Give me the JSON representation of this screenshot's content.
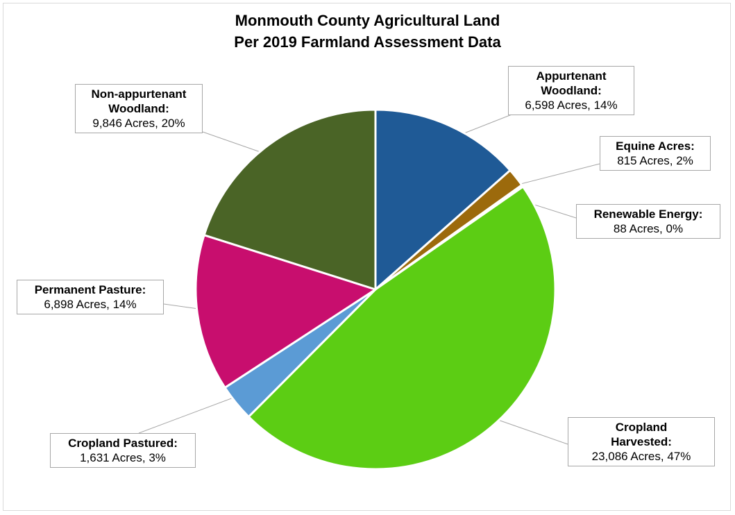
{
  "chart_data": {
    "type": "pie",
    "title": "Monmouth County Agricultural Land",
    "subtitle": "Per 2019 Farmland Assessment Data",
    "slices": [
      {
        "label": "Appurtenant Woodland",
        "label_lines": [
          "Appurtenant",
          "Woodland:"
        ],
        "value": 6598,
        "value_text": "6,598 Acres, 14%",
        "percent": 14,
        "color": "#1f5a96"
      },
      {
        "label": "Equine Acres",
        "label_lines": [
          "Equine Acres:"
        ],
        "value": 815,
        "value_text": "815 Acres, 2%",
        "percent": 2,
        "color": "#9c6a0c"
      },
      {
        "label": "Renewable Energy",
        "label_lines": [
          "Renewable Energy:"
        ],
        "value": 88,
        "value_text": "88 Acres, 0%",
        "percent": 0,
        "color": "#808080"
      },
      {
        "label": "Cropland Harvested",
        "label_lines": [
          "Cropland",
          "Harvested:"
        ],
        "value": 23086,
        "value_text": "23,086 Acres, 47%",
        "percent": 47,
        "color": "#5ccd14"
      },
      {
        "label": "Cropland Pastured",
        "label_lines": [
          "Cropland Pastured:"
        ],
        "value": 1631,
        "value_text": "1,631 Acres, 3%",
        "percent": 3,
        "color": "#5b9bd5"
      },
      {
        "label": "Permanent Pasture",
        "label_lines": [
          "Permanent Pasture:"
        ],
        "value": 6898,
        "value_text": "6,898 Acres, 14%",
        "percent": 14,
        "color": "#c80e6e"
      },
      {
        "label": "Non-appurtenant Woodland",
        "label_lines": [
          "Non-appurtenant",
          "Woodland:"
        ],
        "value": 9846,
        "value_text": "9,846 Acres, 20%",
        "percent": 20,
        "color": "#4a6426"
      }
    ],
    "start_angle_deg": 0,
    "direction": "clockwise",
    "legend": "none",
    "data_labels": "outside with leader lines"
  }
}
